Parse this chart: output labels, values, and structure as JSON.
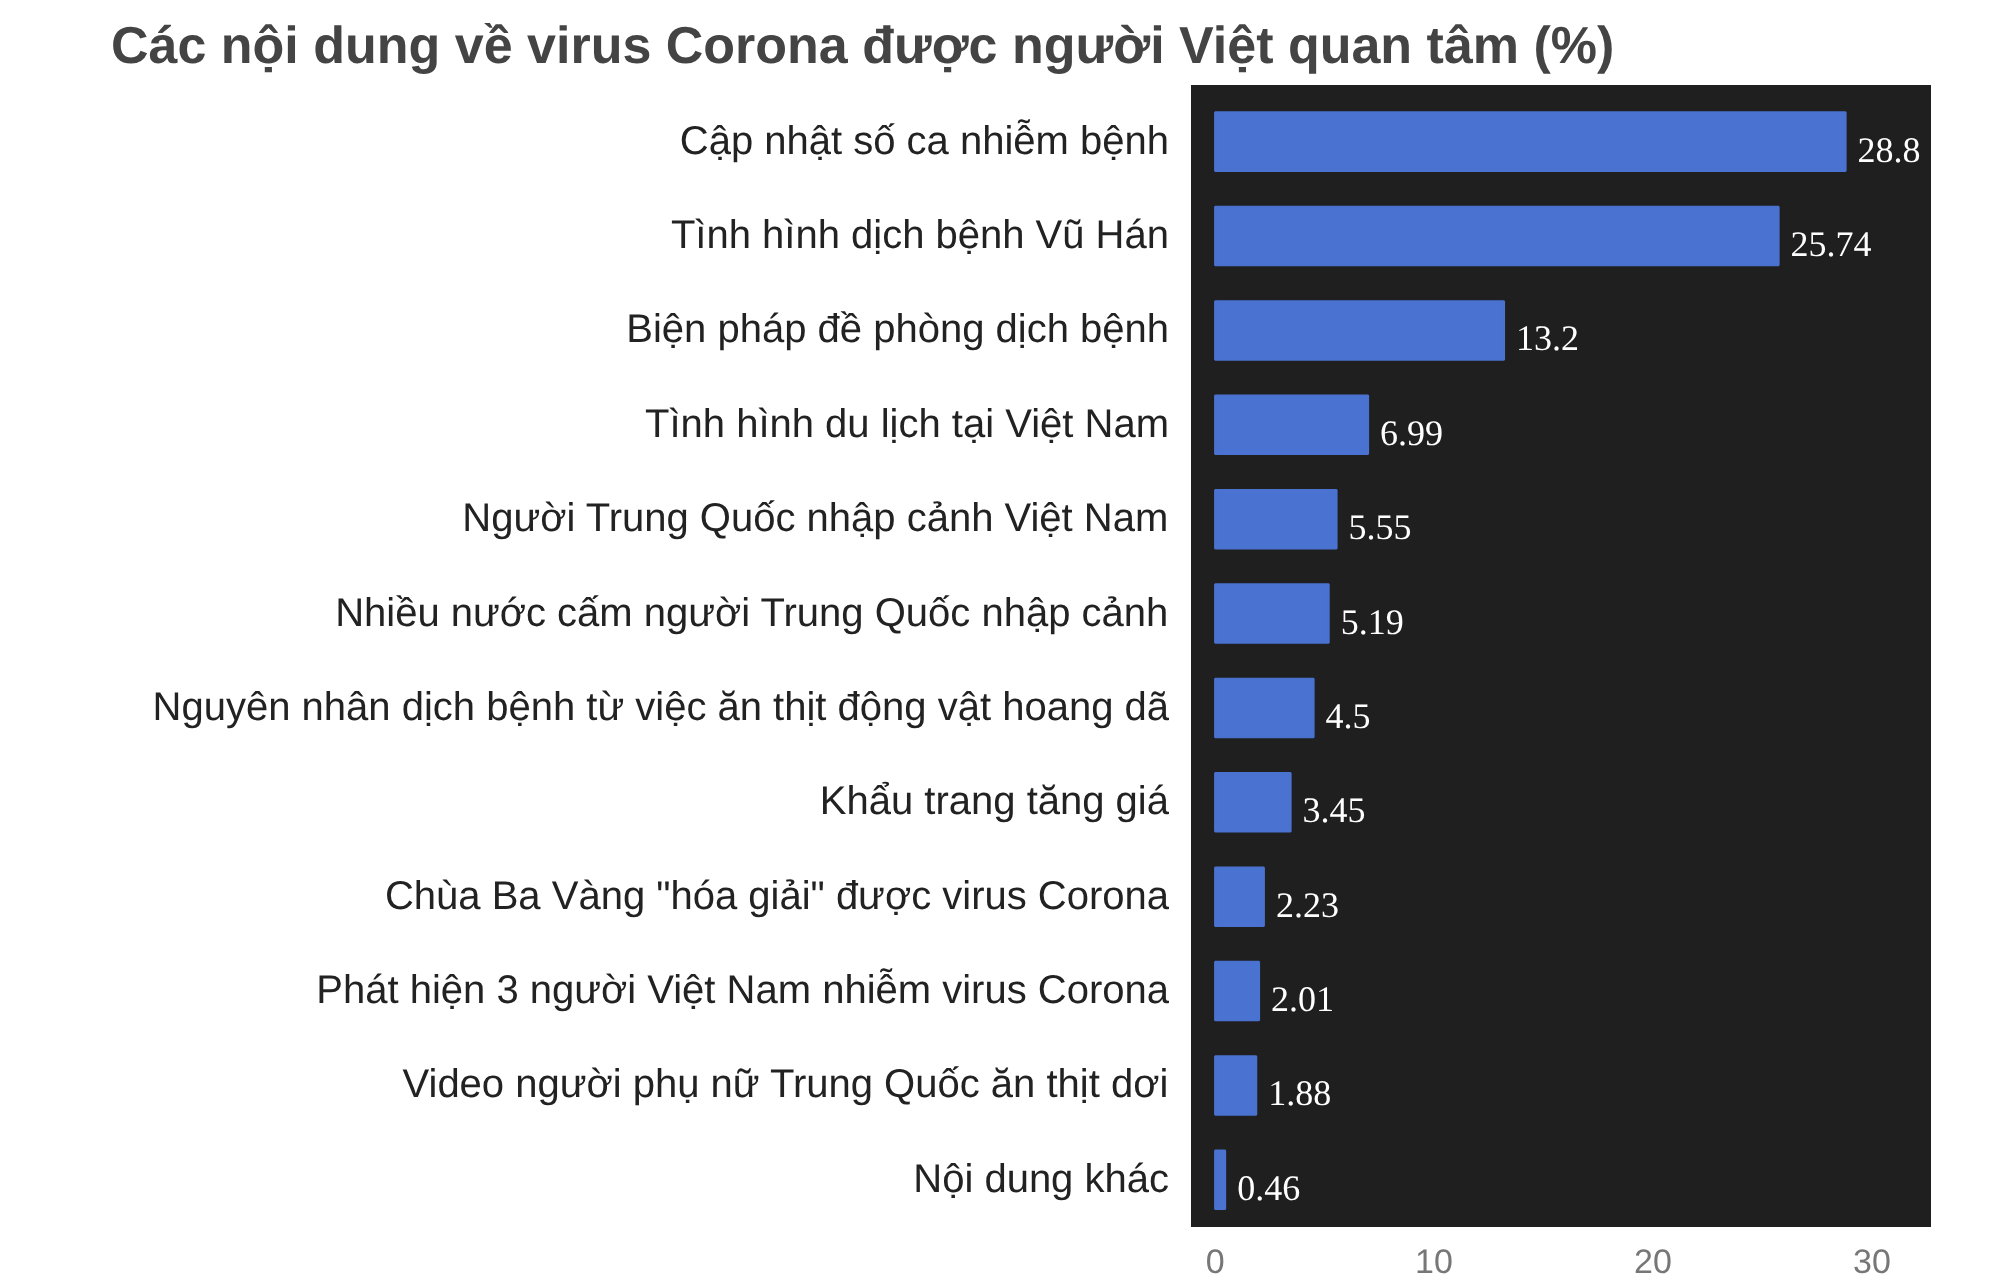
{
  "chart_data": {
    "type": "bar",
    "orientation": "horizontal",
    "title": "Các nội dung về virus Corona được người Việt quan tâm (%)",
    "categories": [
      "Cập nhật số ca nhiễm bệnh",
      "Tình hình dịch bệnh Vũ Hán",
      "Biện pháp đề phòng dịch bệnh",
      "Tình hình du lịch tại Việt Nam",
      "Người Trung Quốc nhập cảnh Việt Nam",
      "Nhiều nước cấm người Trung Quốc nhập cảnh",
      "Nguyên nhân dịch bệnh từ việc ăn thịt động vật hoang dã",
      "Khẩu trang tăng giá",
      "Chùa Ba Vàng \"hóa giải\" được virus Corona",
      "Phát hiện 3 người Việt Nam nhiễm virus Corona",
      "Video người phụ nữ Trung Quốc ăn thịt dơi",
      "Nội dung khác"
    ],
    "values": [
      28.8,
      25.74,
      13.2,
      6.99,
      5.55,
      5.19,
      4.5,
      3.45,
      2.23,
      2.01,
      1.88,
      0.46
    ],
    "color": "#4a72d0",
    "data_labels": true,
    "xlim": [
      -1.1,
      32.7
    ],
    "xticks": [
      0,
      10,
      20,
      30
    ],
    "grid": false
  }
}
